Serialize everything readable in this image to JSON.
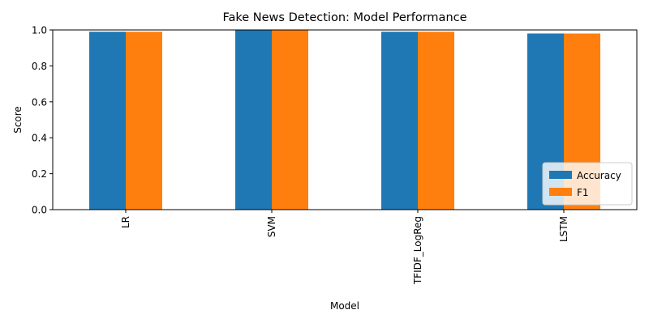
{
  "chart_data": {
    "type": "bar",
    "title": "Fake News Detection: Model Performance",
    "xlabel": "Model",
    "ylabel": "Score",
    "categories": [
      "LR",
      "SVM",
      "TFIDF_LogReg",
      "LSTM"
    ],
    "series": [
      {
        "name": "Accuracy",
        "color": "#1f77b4",
        "values": [
          0.99,
          1.0,
          0.99,
          0.98
        ]
      },
      {
        "name": "F1",
        "color": "#ff7f0e",
        "values": [
          0.99,
          1.0,
          0.99,
          0.98
        ]
      }
    ],
    "ylim": [
      0.0,
      1.0
    ],
    "yticks": [
      "0.0",
      "0.2",
      "0.4",
      "0.6",
      "0.8",
      "1.0"
    ],
    "grid": false,
    "legend_position": "lower-right"
  }
}
